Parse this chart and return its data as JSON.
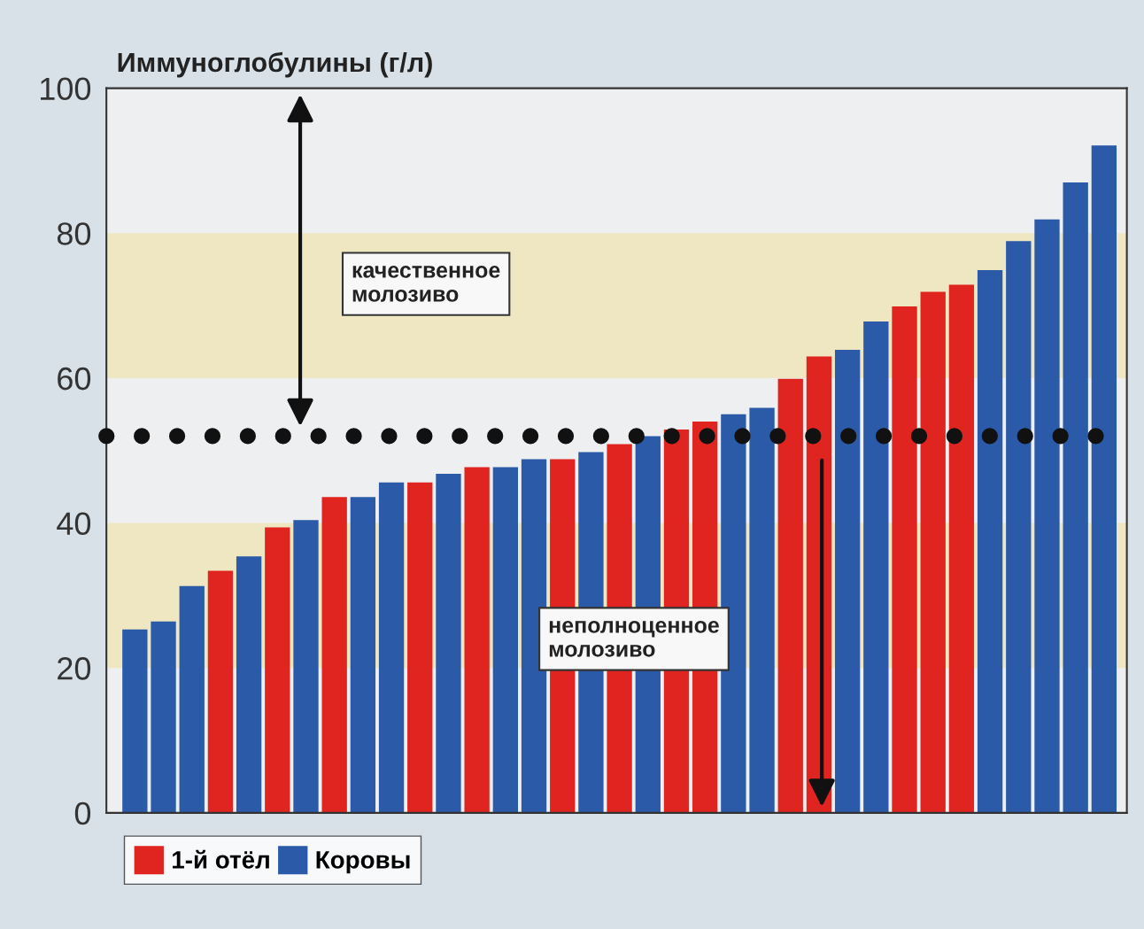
{
  "chart_data": {
    "type": "bar",
    "ylabel": "Иммуноглобулины (г/л)",
    "categories": [
      null,
      null,
      null,
      null,
      null,
      null,
      null,
      null,
      null,
      null,
      null,
      null,
      null,
      null,
      null,
      null,
      null,
      null,
      null,
      null,
      null,
      null,
      null,
      null,
      null,
      null,
      null,
      null,
      null,
      null,
      null,
      null,
      null,
      null,
      null
    ],
    "series": [
      {
        "name": "1-й отёл",
        "color": "#e02420",
        "values": [
          null,
          null,
          null,
          33.4,
          null,
          39.4,
          null,
          43.6,
          null,
          null,
          45.6,
          null,
          47.7,
          null,
          null,
          48.8,
          null,
          50.9,
          null,
          52.9,
          54.0,
          null,
          null,
          59.9,
          63.0,
          null,
          null,
          69.9,
          71.9,
          72.9,
          null,
          null,
          null,
          null,
          null
        ]
      },
      {
        "name": "Коровы",
        "color": "#2a5aa8",
        "values": [
          25.3,
          26.4,
          31.3,
          null,
          35.4,
          null,
          40.4,
          null,
          43.6,
          45.6,
          null,
          46.8,
          null,
          47.7,
          48.8,
          null,
          49.8,
          null,
          52.0,
          null,
          null,
          55.0,
          55.9,
          null,
          null,
          63.9,
          67.8,
          null,
          null,
          null,
          74.9,
          78.9,
          81.9,
          87.0,
          92.1
        ]
      }
    ],
    "ylim": [
      0,
      100
    ],
    "yticks": [
      0,
      20,
      40,
      60,
      80,
      100
    ],
    "grid": false,
    "legend": "bottom left",
    "bands": [
      {
        "axis": "y",
        "from": 20,
        "to": 40,
        "color": "#efe7c2"
      },
      {
        "axis": "y",
        "from": 60,
        "to": 80,
        "color": "#efe7c2"
      }
    ],
    "ref_lines": [
      {
        "axis": "y",
        "value": 52,
        "color": "#111111",
        "line_style": "dotted"
      }
    ],
    "annotations": [
      "качественное\nмолозиво",
      "неполноценное\nмолозиво"
    ]
  }
}
